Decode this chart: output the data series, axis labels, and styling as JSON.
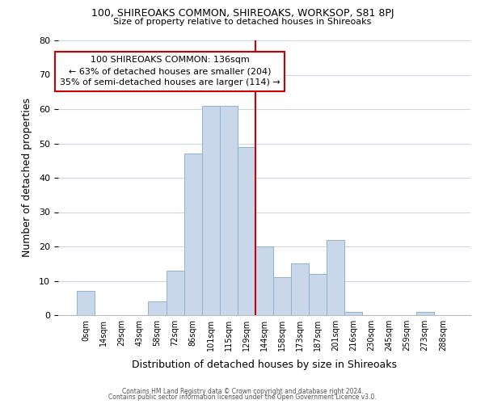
{
  "title": "100, SHIREOAKS COMMON, SHIREOAKS, WORKSOP, S81 8PJ",
  "subtitle": "Size of property relative to detached houses in Shireoaks",
  "xlabel": "Distribution of detached houses by size in Shireoaks",
  "ylabel": "Number of detached properties",
  "bar_labels": [
    "0sqm",
    "14sqm",
    "29sqm",
    "43sqm",
    "58sqm",
    "72sqm",
    "86sqm",
    "101sqm",
    "115sqm",
    "129sqm",
    "144sqm",
    "158sqm",
    "173sqm",
    "187sqm",
    "201sqm",
    "216sqm",
    "230sqm",
    "245sqm",
    "259sqm",
    "273sqm",
    "288sqm"
  ],
  "bar_heights": [
    7,
    0,
    0,
    0,
    4,
    13,
    47,
    61,
    61,
    49,
    20,
    11,
    15,
    12,
    22,
    1,
    0,
    0,
    0,
    1,
    0
  ],
  "bar_color": "#c8d8ea",
  "bar_edge_color": "#8fb4d0",
  "vline_x": 9.5,
  "vline_color": "#cc0000",
  "annotation_title": "100 SHIREOAKS COMMON: 136sqm",
  "annotation_line1": "← 63% of detached houses are smaller (204)",
  "annotation_line2": "35% of semi-detached houses are larger (114) →",
  "annotation_box_color": "#ffffff",
  "annotation_box_edge": "#cc0000",
  "ylim": [
    0,
    80
  ],
  "yticks": [
    0,
    10,
    20,
    30,
    40,
    50,
    60,
    70,
    80
  ],
  "footer1": "Contains HM Land Registry data © Crown copyright and database right 2024.",
  "footer2": "Contains public sector information licensed under the Open Government Licence v3.0.",
  "background_color": "#ffffff",
  "grid_color": "#cdd8e3"
}
